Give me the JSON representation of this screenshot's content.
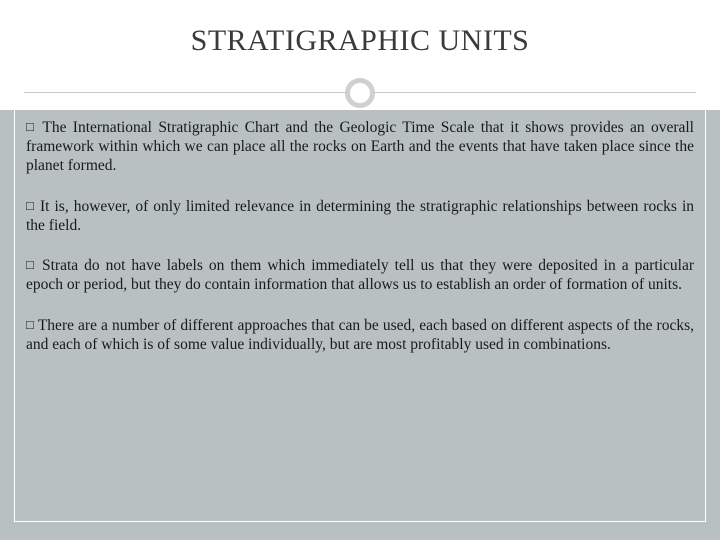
{
  "slide": {
    "title": "STRATIGRAPHIC UNITS",
    "background_color": "#b8c0c2",
    "title_background": "#ffffff",
    "title_fontsize": 30,
    "title_color": "#3a3a3a",
    "divider_color": "#c9c9c9",
    "circle_border_color": "#d0d0d0",
    "body_fontsize": 15.5,
    "body_color": "#1a1a1a",
    "bullet_glyph": "□",
    "paragraphs": [
      "The International Stratigraphic Chart and the Geologic Time Scale that it shows provides an overall framework within which we can place all the rocks on Earth and the events that have taken place since the planet formed.",
      "It is, however, of only limited relevance in determining the stratigraphic relationships between rocks in the field.",
      "Strata do not have labels on them which immediately tell us that they were deposited in a particular epoch or period, but they do contain information that allows us to establish an order of formation of units.",
      "There are a number of different approaches that can be used, each based on different aspects of the rocks, and each of which is of some value individually, but are most profitably used in combinations."
    ]
  }
}
